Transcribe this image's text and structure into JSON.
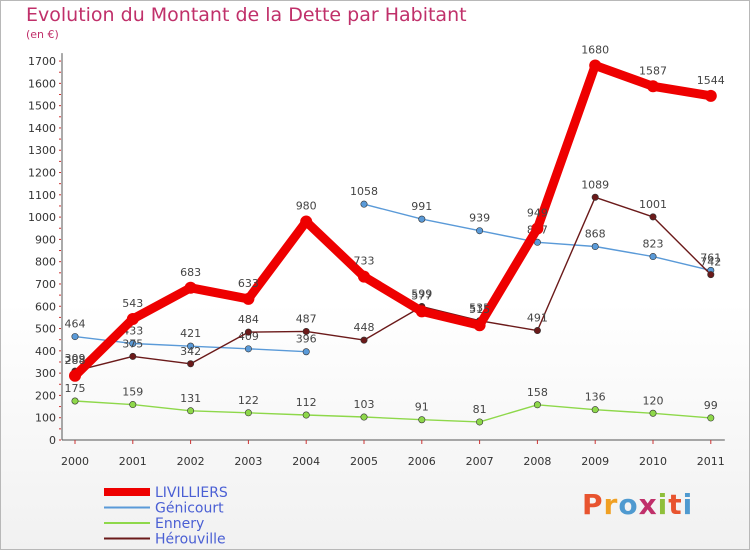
{
  "header": {
    "title": "Evolution du Montant de la Dette par Habitant",
    "unit": "(en €)"
  },
  "logo": {
    "text": "Proxiti",
    "colors": [
      "#e8542f",
      "#f0a023",
      "#4f9ad0",
      "#c0306a",
      "#8fbf3a",
      "#e8542f",
      "#4f9ad0"
    ]
  },
  "chart_data": {
    "type": "line",
    "title": "Evolution du Montant de la Dette par Habitant",
    "ylabel": "(en €)",
    "xlabel": "",
    "ylim": [
      0,
      1700
    ],
    "yticks": [
      0,
      100,
      200,
      300,
      400,
      500,
      600,
      700,
      800,
      900,
      1000,
      1100,
      1200,
      1300,
      1400,
      1500,
      1600,
      1700
    ],
    "categories": [
      "2000",
      "2001",
      "2002",
      "2003",
      "2004",
      "2005",
      "2006",
      "2007",
      "2008",
      "2009",
      "2010",
      "2011"
    ],
    "grid": false,
    "legend": "bottom-left",
    "series": [
      {
        "name": "LIVILLIERS",
        "color": "#ee0000",
        "bold": true,
        "values": [
          288,
          543,
          683,
          633,
          980,
          733,
          577,
          515,
          949,
          1680,
          1587,
          1544
        ],
        "labels": [
          "288",
          "543",
          "683",
          "633",
          "980",
          "733",
          "577",
          "515",
          "949",
          "1680",
          "1587",
          "1544"
        ]
      },
      {
        "name": "Génicourt",
        "color": "#5a9ad8",
        "bold": false,
        "values": [
          464,
          433,
          421,
          409,
          396,
          1058,
          991,
          939,
          887,
          868,
          823,
          761
        ],
        "labels": [
          "464",
          "433",
          "421",
          "409",
          "396",
          "1058",
          "991",
          "939",
          "887",
          "868",
          "823",
          "761"
        ],
        "gaps": [
          4
        ]
      },
      {
        "name": "Ennery",
        "color": "#8ed84a",
        "bold": false,
        "values": [
          175,
          159,
          131,
          122,
          112,
          103,
          91,
          81,
          158,
          136,
          120,
          99
        ],
        "labels": [
          "175",
          "159",
          "131",
          "122",
          "112",
          "103",
          "91",
          "81",
          "158",
          "136",
          "120",
          "99"
        ]
      },
      {
        "name": "Hérouville",
        "color": "#6b1a1a",
        "bold": false,
        "values": [
          309,
          375,
          342,
          484,
          487,
          448,
          599,
          535,
          491,
          1089,
          1001,
          742
        ],
        "labels": [
          "309",
          "375",
          "342",
          "484",
          "487",
          "448",
          "599",
          "535",
          "491",
          "1089",
          "1001",
          "742"
        ]
      }
    ]
  }
}
